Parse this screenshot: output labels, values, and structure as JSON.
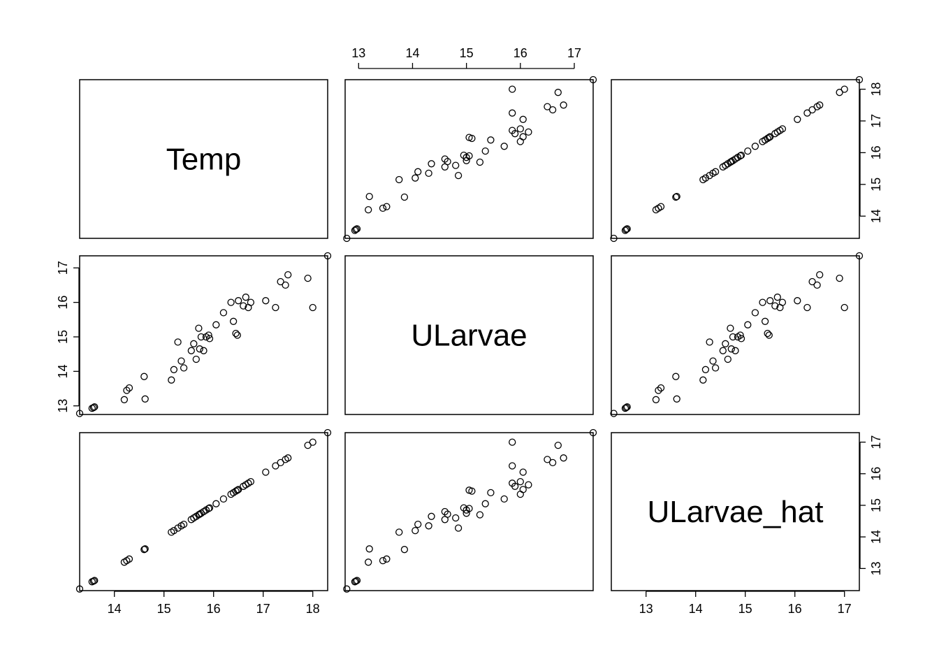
{
  "chart_data": {
    "type": "scatter",
    "variables": [
      "Temp",
      "ULarvae",
      "ULarvae_hat"
    ],
    "ranges": {
      "Temp": [
        13.3,
        18.3
      ],
      "ULarvae": [
        12.75,
        17.35
      ],
      "ULarvae_hat": [
        12.3,
        17.3
      ]
    },
    "ticks": {
      "Temp": [
        14,
        15,
        16,
        17,
        18
      ],
      "ULarvae": [
        13,
        14,
        15,
        16,
        17
      ],
      "ULarvae_hat": [
        13,
        14,
        15,
        16,
        17
      ]
    },
    "tick_labels": {
      "Temp": [
        "14",
        "15",
        "16",
        "17",
        "18"
      ],
      "ULarvae": [
        "13",
        "14",
        "15",
        "16",
        "17"
      ],
      "ULarvae_hat": [
        "13",
        "14",
        "15",
        "16",
        "17"
      ]
    },
    "axis_placement": {
      "top": "ULarvae",
      "right_row1": "Temp",
      "right_row3": "ULarvae_hat",
      "left_row2": "ULarvae",
      "bottom_col1": "Temp",
      "bottom_col3": "ULarvae_hat"
    },
    "temp": [
      13.3,
      13.55,
      13.58,
      13.6,
      14.2,
      14.25,
      14.3,
      14.6,
      14.62,
      15.15,
      15.2,
      15.28,
      15.35,
      15.4,
      15.55,
      15.6,
      15.65,
      15.7,
      15.72,
      15.75,
      15.8,
      15.85,
      15.9,
      15.92,
      16.05,
      16.2,
      16.35,
      16.4,
      16.45,
      16.48,
      16.5,
      16.6,
      16.65,
      16.7,
      16.75,
      17.05,
      17.25,
      17.35,
      17.45,
      17.5,
      17.9,
      18.0,
      18.3
    ],
    "ularvae": [
      12.78,
      12.93,
      12.95,
      12.97,
      13.18,
      13.45,
      13.52,
      13.85,
      13.2,
      13.75,
      14.05,
      14.85,
      14.3,
      14.1,
      14.6,
      14.8,
      14.35,
      15.25,
      14.65,
      15.0,
      14.6,
      15.0,
      15.05,
      14.95,
      15.35,
      15.7,
      16.0,
      15.45,
      15.1,
      15.05,
      16.05,
      15.9,
      16.15,
      15.85,
      16.0,
      16.05,
      15.85,
      16.6,
      16.5,
      16.8,
      16.7,
      15.85,
      17.35
    ],
    "ularvae_hat": [
      12.35,
      12.58,
      12.6,
      12.62,
      13.2,
      13.25,
      13.3,
      13.6,
      13.62,
      14.15,
      14.2,
      14.28,
      14.35,
      14.4,
      14.55,
      14.6,
      14.65,
      14.7,
      14.72,
      14.75,
      14.8,
      14.85,
      14.9,
      14.92,
      15.05,
      15.2,
      15.35,
      15.4,
      15.45,
      15.48,
      15.5,
      15.6,
      15.65,
      15.7,
      15.75,
      16.05,
      16.25,
      16.35,
      16.45,
      16.5,
      16.9,
      17.0,
      17.3
    ]
  }
}
